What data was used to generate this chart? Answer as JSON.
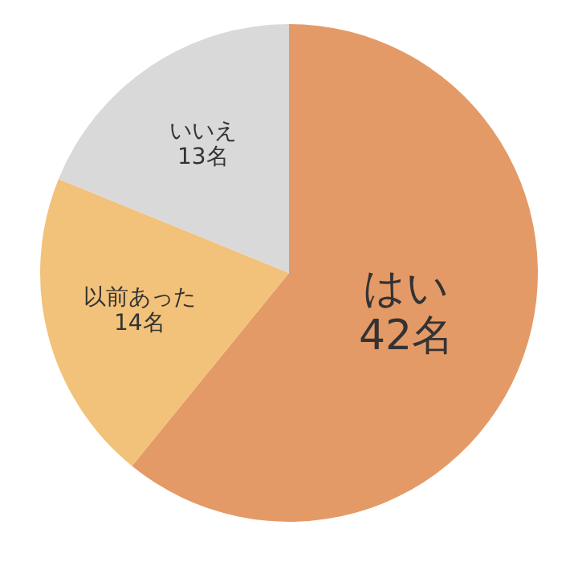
{
  "chart_data": {
    "type": "pie",
    "categories": [
      "はい",
      "以前あった",
      "いいえ"
    ],
    "values": [
      42,
      14,
      13
    ],
    "colors": [
      "#e49a67",
      "#f2c27a",
      "#d9d9d9"
    ],
    "value_labels": [
      "42名",
      "14名",
      "13名"
    ],
    "legend": false
  }
}
